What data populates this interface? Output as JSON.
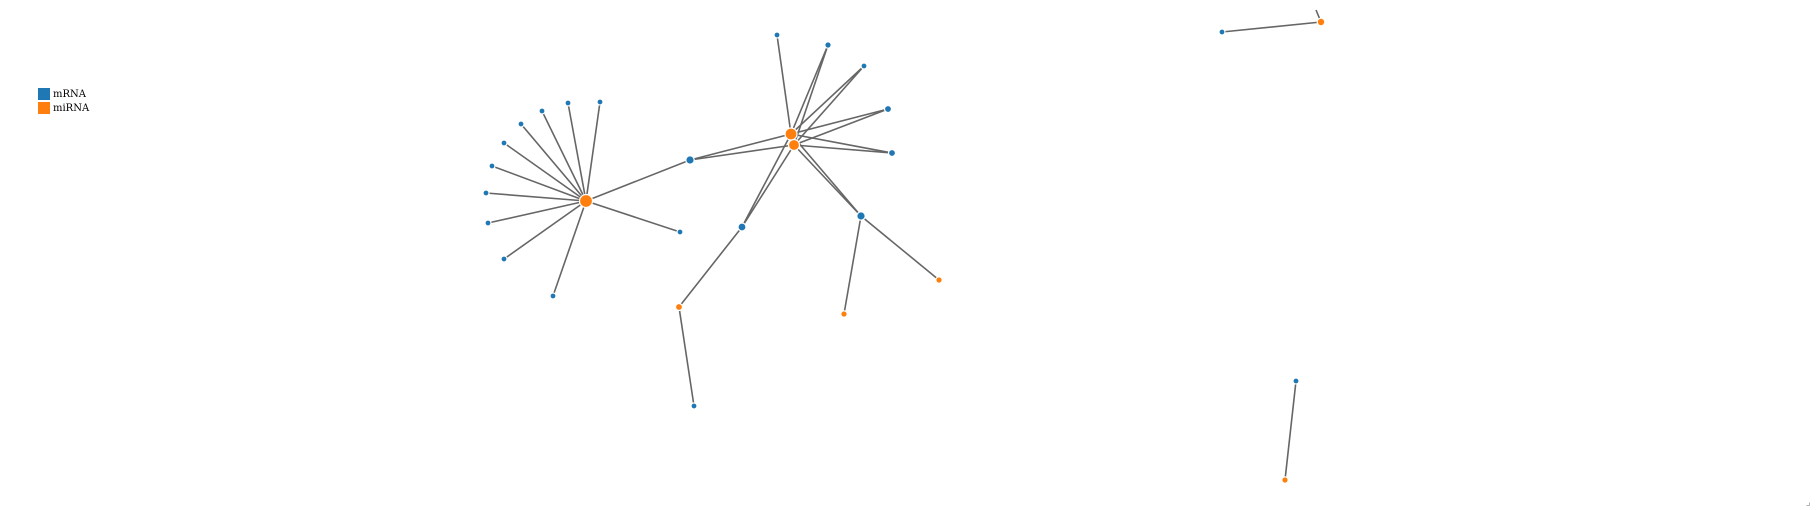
{
  "legend": {
    "items": [
      {
        "label": "mRNA",
        "color": "#1f77b4"
      },
      {
        "label": "miRNA",
        "color": "#ff7f0e"
      }
    ]
  },
  "colors": {
    "mRNA": "#1f77b4",
    "miRNA": "#ff7f0e",
    "link": "#666666"
  },
  "graph": {
    "nodes": [
      {
        "id": "m1",
        "type": "miRNA"
      },
      {
        "id": "a1",
        "type": "mRNA"
      },
      {
        "id": "a2",
        "type": "mRNA"
      },
      {
        "id": "a3",
        "type": "mRNA"
      },
      {
        "id": "a4",
        "type": "mRNA"
      },
      {
        "id": "a5",
        "type": "mRNA"
      },
      {
        "id": "a6",
        "type": "mRNA"
      },
      {
        "id": "a7",
        "type": "mRNA"
      },
      {
        "id": "a8",
        "type": "mRNA"
      },
      {
        "id": "a9",
        "type": "mRNA"
      },
      {
        "id": "a10",
        "type": "mRNA"
      },
      {
        "id": "a11",
        "type": "mRNA"
      },
      {
        "id": "b1",
        "type": "mRNA"
      },
      {
        "id": "m2",
        "type": "miRNA"
      },
      {
        "id": "m3",
        "type": "miRNA"
      },
      {
        "id": "c1",
        "type": "mRNA"
      },
      {
        "id": "c2",
        "type": "mRNA"
      },
      {
        "id": "c3",
        "type": "mRNA"
      },
      {
        "id": "c4",
        "type": "mRNA"
      },
      {
        "id": "c5",
        "type": "mRNA"
      },
      {
        "id": "c6",
        "type": "mRNA"
      },
      {
        "id": "c7",
        "type": "mRNA"
      },
      {
        "id": "m4",
        "type": "miRNA"
      },
      {
        "id": "c8",
        "type": "mRNA"
      },
      {
        "id": "m5",
        "type": "miRNA"
      },
      {
        "id": "m6",
        "type": "miRNA"
      },
      {
        "id": "d1",
        "type": "mRNA"
      },
      {
        "id": "m7",
        "type": "miRNA"
      },
      {
        "id": "d2",
        "type": "mRNA"
      },
      {
        "id": "m8",
        "type": "miRNA"
      }
    ],
    "links": [
      [
        "m1",
        "a1"
      ],
      [
        "m1",
        "a2"
      ],
      [
        "m1",
        "a3"
      ],
      [
        "m1",
        "a4"
      ],
      [
        "m1",
        "a5"
      ],
      [
        "m1",
        "a6"
      ],
      [
        "m1",
        "a7"
      ],
      [
        "m1",
        "a8"
      ],
      [
        "m1",
        "a9"
      ],
      [
        "m1",
        "a10"
      ],
      [
        "m1",
        "a11"
      ],
      [
        "m1",
        "b1"
      ],
      [
        "b1",
        "m2"
      ],
      [
        "b1",
        "m3"
      ],
      [
        "m2",
        "c1"
      ],
      [
        "m2",
        "c2"
      ],
      [
        "m2",
        "c3"
      ],
      [
        "m2",
        "c4"
      ],
      [
        "m2",
        "c5"
      ],
      [
        "m2",
        "c6"
      ],
      [
        "m2",
        "c7"
      ],
      [
        "m3",
        "c2"
      ],
      [
        "m3",
        "c3"
      ],
      [
        "m3",
        "c4"
      ],
      [
        "m3",
        "c5"
      ],
      [
        "m3",
        "c6"
      ],
      [
        "m3",
        "c7"
      ],
      [
        "c7",
        "m4"
      ],
      [
        "m4",
        "c8"
      ],
      [
        "c6",
        "m5"
      ],
      [
        "c6",
        "m6"
      ],
      [
        "d1",
        "m7"
      ],
      [
        "d2",
        "m8"
      ]
    ]
  }
}
